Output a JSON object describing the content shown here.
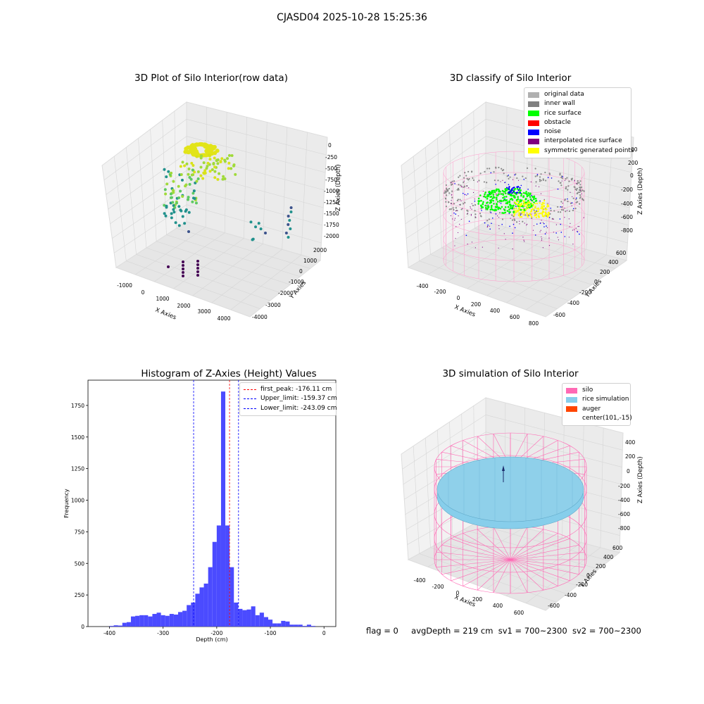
{
  "suptitle": "CJASD04 2025-10-28 15:25:36",
  "status_line": {
    "flag": "flag = 0",
    "avg": "avgDepth = 219 cm",
    "sv1": "sv1 = 700~2300",
    "sv2": "sv2 = 700~2300"
  },
  "colors": {
    "hist_bar": "#4b4bff",
    "peak_line": "#ff0000",
    "limit_line": "#0000ff",
    "silo_wire": "#ff69b4",
    "rice_surface": "#87ceeb",
    "pane": "#f2f2f2",
    "grid": "#d8d8d8"
  },
  "chart_data": [
    {
      "type": "scatter",
      "projection": "3d",
      "title": "3D Plot of Silo Interior(row data)",
      "xlabel": "X Axies",
      "ylabel": "Y Axies",
      "zlabel": "Z Axies (Depth)",
      "x_ticks": [
        "-1000",
        "0",
        "1000",
        "2000",
        "3000",
        "4000"
      ],
      "y_ticks": [
        "-4000",
        "-3000",
        "-2000",
        "-1000",
        "0",
        "1000",
        "2000"
      ],
      "z_ticks": [
        "0",
        "-250",
        "-500",
        "-750",
        "-1000",
        "-1250",
        "-1500",
        "-1750",
        "-2000"
      ],
      "xlim": [
        -1500,
        4500
      ],
      "ylim": [
        -4200,
        2400
      ],
      "zlim": [
        -2100,
        100
      ],
      "colormap": "viridis"
    },
    {
      "type": "scatter",
      "projection": "3d",
      "title": "3D classify of Silo Interior",
      "xlabel": "X Axies",
      "ylabel": "Y Axies",
      "zlabel": "Z Axies (Depth)",
      "x_ticks": [
        "-400",
        "-200",
        "0",
        "200",
        "400",
        "600",
        "800"
      ],
      "y_ticks": [
        "-600",
        "-400",
        "-200",
        "0",
        "200",
        "400",
        "600"
      ],
      "z_ticks": [
        "200",
        "0",
        "-200",
        "-400",
        "-600",
        "-800"
      ],
      "z_partial_tick": "00",
      "legend": [
        {
          "label": "original data",
          "color": "#b0b0b0"
        },
        {
          "label": "inner wall",
          "color": "#808080"
        },
        {
          "label": "rice surface",
          "color": "#00ff00"
        },
        {
          "label": "obstacle",
          "color": "#ff0000"
        },
        {
          "label": "noise",
          "color": "#0000ff"
        },
        {
          "label": "interpolated rice surface",
          "color": "#800080"
        },
        {
          "label": "symmetric generated points",
          "color": "#ffff00"
        }
      ]
    },
    {
      "type": "bar",
      "title": "Histogram of Z-Axies (Height) Values",
      "xlabel": "Depth (cm)",
      "ylabel": "Frequency",
      "xlim": [
        -440,
        22
      ],
      "ylim": [
        0,
        1950
      ],
      "x_ticks": [
        -400,
        -300,
        -200,
        -100,
        0
      ],
      "y_ticks": [
        0,
        250,
        500,
        750,
        1000,
        1250,
        1500,
        1750
      ],
      "bin_width": 8,
      "bin_start": -416,
      "values": [
        0,
        0,
        5,
        10,
        8,
        30,
        35,
        80,
        85,
        90,
        90,
        80,
        100,
        110,
        90,
        85,
        100,
        95,
        115,
        125,
        170,
        190,
        260,
        310,
        340,
        470,
        670,
        800,
        1860,
        800,
        470,
        190,
        140,
        130,
        135,
        160,
        90,
        110,
        75,
        55,
        25,
        25,
        45,
        40,
        15,
        15,
        15,
        5,
        15,
        5,
        0,
        0
      ],
      "vlines": [
        {
          "label": "first_peak: -176.11 cm",
          "x": -176.11,
          "color": "#ff0000"
        },
        {
          "label": "Upper_limit: -159.37 cm",
          "x": -159.37,
          "color": "#0000ff"
        },
        {
          "label": "Lower_limit: -243.09 cm",
          "x": -243.09,
          "color": "#0000ff"
        }
      ]
    },
    {
      "type": "scatter",
      "projection": "3d",
      "title": "3D simulation of Silo Interior",
      "xlabel": "X Axies",
      "ylabel": "Y Axies",
      "zlabel": "Z Axies (Depth)",
      "x_ticks": [
        "-400",
        "-200",
        "0",
        "200",
        "400",
        "600"
      ],
      "y_ticks": [
        "-600",
        "-400",
        "-200",
        "0",
        "200",
        "400",
        "600"
      ],
      "z_ticks": [
        "400",
        "200",
        "0",
        "-200",
        "-400",
        "-600",
        "-800"
      ],
      "legend": [
        {
          "label": "silo",
          "color": "#ff69b4"
        },
        {
          "label": "rice simulation",
          "color": "#87ceeb"
        },
        {
          "label": "auger",
          "color": "#ff4500"
        },
        {
          "label": "center(101,-15)",
          "color": ""
        }
      ]
    }
  ]
}
